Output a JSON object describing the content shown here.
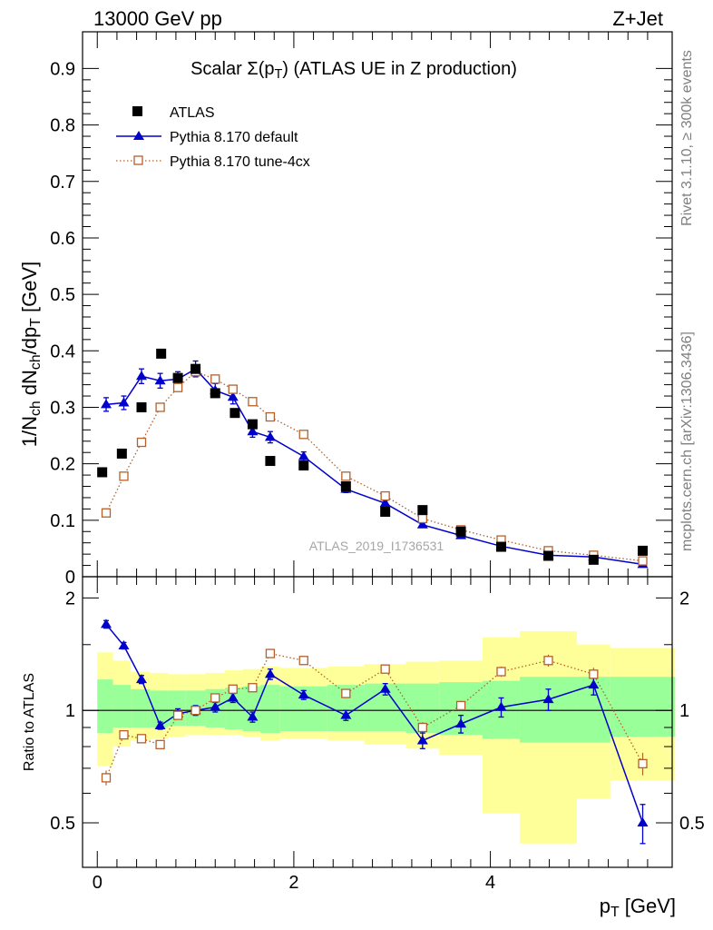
{
  "header": {
    "left": "13000 GeV pp",
    "right": "Z+Jet"
  },
  "side_text": {
    "rivet": "Rivet 3.1.10, ≥ 300k events",
    "mcplots": "mcplots.cern.ch [arXiv:1306.3436]"
  },
  "chart_data": [
    {
      "type": "scatter",
      "title": "Scalar Σ(p_T) (ATLAS UE in Z production)",
      "ylabel": "1/N_ch dN_ch/dp_T [GeV]",
      "xlabel": "p_T [GeV]",
      "watermark": "ATLAS_2019_I1736531",
      "xlim": [
        -0.15,
        5.85
      ],
      "ylim": [
        0,
        0.965
      ],
      "yticks": [
        0,
        0.1,
        0.2,
        0.3,
        0.4,
        0.5,
        0.6,
        0.7,
        0.8,
        0.9
      ],
      "ytick_labels": [
        "0",
        "0.1",
        "0.2",
        "0.3",
        "0.4",
        "0.5",
        "0.6",
        "0.7",
        "0.8",
        "0.9"
      ],
      "legend_position": "top-left",
      "series": [
        {
          "name": "ATLAS",
          "style": "data",
          "color": "#000000",
          "x": [
            0.05,
            0.25,
            0.45,
            0.65,
            0.82,
            1.0,
            1.2,
            1.4,
            1.58,
            1.76,
            2.1,
            2.53,
            2.93,
            3.31,
            3.7,
            4.11,
            4.59,
            5.05,
            5.55
          ],
          "y": [
            0.185,
            0.218,
            0.3,
            0.395,
            0.352,
            0.368,
            0.325,
            0.29,
            0.27,
            0.205,
            0.197,
            0.16,
            0.115,
            0.118,
            0.08,
            0.053,
            0.037,
            0.03,
            0.046
          ]
        },
        {
          "name": "Pythia 8.170 default",
          "style": "line-triangle",
          "color": "#0000cc",
          "x": [
            0.09,
            0.27,
            0.45,
            0.64,
            0.82,
            1.0,
            1.2,
            1.38,
            1.58,
            1.76,
            2.1,
            2.53,
            2.93,
            3.31,
            3.7,
            4.11,
            4.59,
            5.05,
            5.55
          ],
          "y": [
            0.305,
            0.308,
            0.355,
            0.347,
            0.35,
            0.368,
            0.33,
            0.318,
            0.257,
            0.247,
            0.213,
            0.155,
            0.13,
            0.092,
            0.073,
            0.054,
            0.038,
            0.035,
            0.022
          ],
          "err": [
            0.012,
            0.012,
            0.013,
            0.013,
            0.013,
            0.014,
            0.012,
            0.012,
            0.01,
            0.01,
            0.008,
            0.006,
            0.005,
            0.004,
            0.003,
            0.003,
            0.002,
            0.002,
            0.002
          ]
        },
        {
          "name": "Pythia 8.170 tune-4cx",
          "style": "dotted-open-square",
          "color": "#b5602a",
          "x": [
            0.09,
            0.27,
            0.45,
            0.64,
            0.82,
            1.0,
            1.2,
            1.38,
            1.58,
            1.76,
            2.1,
            2.53,
            2.93,
            3.31,
            3.7,
            4.11,
            4.59,
            5.05,
            5.55
          ],
          "y": [
            0.113,
            0.178,
            0.238,
            0.3,
            0.335,
            0.363,
            0.35,
            0.332,
            0.31,
            0.283,
            0.252,
            0.178,
            0.143,
            0.103,
            0.083,
            0.065,
            0.046,
            0.038,
            0.028
          ]
        }
      ]
    },
    {
      "type": "line",
      "ylabel": "Ratio to ATLAS",
      "xlabel": "p_T [GeV]",
      "xlim": [
        -0.15,
        5.85
      ],
      "ylim": [
        0.38,
        2.28
      ],
      "xticks": [
        0,
        2,
        4
      ],
      "xtick_labels": [
        "0",
        "2",
        "4"
      ],
      "yticks": [
        0.5,
        1,
        2
      ],
      "ytick_labels": [
        "0.5",
        "1",
        "2"
      ],
      "bands": {
        "x_edges": [
          0.0,
          0.16,
          0.34,
          0.54,
          0.72,
          0.9,
          1.1,
          1.3,
          1.48,
          1.66,
          1.86,
          2.34,
          2.72,
          3.14,
          3.48,
          3.92,
          4.3,
          4.88,
          5.22,
          5.88
        ],
        "green_low": [
          0.87,
          0.9,
          0.9,
          0.9,
          0.91,
          0.91,
          0.9,
          0.89,
          0.88,
          0.87,
          0.88,
          0.88,
          0.88,
          0.87,
          0.86,
          0.84,
          0.82,
          0.82,
          0.85
        ],
        "green_high": [
          1.21,
          1.17,
          1.14,
          1.13,
          1.13,
          1.13,
          1.14,
          1.15,
          1.16,
          1.17,
          1.16,
          1.17,
          1.18,
          1.18,
          1.19,
          1.2,
          1.23,
          1.23,
          1.23
        ],
        "yellow_low": [
          0.71,
          0.8,
          0.83,
          0.84,
          0.85,
          0.86,
          0.86,
          0.86,
          0.85,
          0.83,
          0.84,
          0.83,
          0.81,
          0.79,
          0.76,
          0.53,
          0.44,
          0.58,
          0.65
        ],
        "yellow_high": [
          1.43,
          1.36,
          1.27,
          1.26,
          1.25,
          1.25,
          1.26,
          1.28,
          1.29,
          1.31,
          1.3,
          1.31,
          1.33,
          1.35,
          1.36,
          1.57,
          1.63,
          1.5,
          1.47
        ]
      },
      "series": [
        {
          "name": "Pythia 8.170 default",
          "color": "#0000cc",
          "x": [
            0.09,
            0.27,
            0.45,
            0.64,
            0.82,
            1.0,
            1.2,
            1.38,
            1.58,
            1.76,
            2.1,
            2.53,
            2.93,
            3.31,
            3.7,
            4.11,
            4.59,
            5.05,
            5.55
          ],
          "y": [
            1.7,
            1.49,
            1.21,
            0.91,
            0.98,
            1.0,
            1.02,
            1.08,
            0.96,
            1.25,
            1.1,
            0.97,
            1.14,
            0.83,
            0.92,
            1.02,
            1.07,
            1.17,
            0.5
          ],
          "err": [
            0.04,
            0.03,
            0.03,
            0.02,
            0.03,
            0.03,
            0.03,
            0.03,
            0.03,
            0.04,
            0.03,
            0.03,
            0.04,
            0.04,
            0.05,
            0.06,
            0.07,
            0.07,
            0.06
          ]
        },
        {
          "name": "Pythia 8.170 tune-4cx",
          "color": "#b5602a",
          "x": [
            0.09,
            0.27,
            0.45,
            0.64,
            0.82,
            1.0,
            1.2,
            1.38,
            1.58,
            1.76,
            2.1,
            2.53,
            2.93,
            3.31,
            3.7,
            4.11,
            4.59,
            5.05,
            5.55
          ],
          "y": [
            0.66,
            0.86,
            0.84,
            0.81,
            0.97,
            1.0,
            1.08,
            1.14,
            1.15,
            1.42,
            1.36,
            1.11,
            1.29,
            0.9,
            1.03,
            1.27,
            1.36,
            1.25,
            0.72
          ],
          "err": [
            0.03,
            0.02,
            0.02,
            0.02,
            0.02,
            0.02,
            0.02,
            0.02,
            0.02,
            0.03,
            0.02,
            0.02,
            0.03,
            0.03,
            0.03,
            0.04,
            0.05,
            0.05,
            0.05
          ]
        }
      ]
    }
  ]
}
